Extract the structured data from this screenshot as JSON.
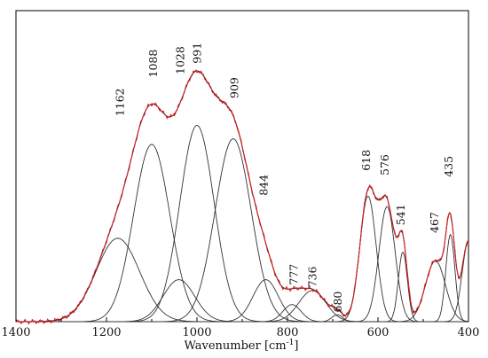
{
  "chart_data": {
    "type": "line",
    "title": "",
    "xlabel": "Wavenumber [cm",
    "xlabel_superscript": "-1",
    "xlabel_suffix": "]",
    "ylabel": "",
    "xlim": [
      1400,
      400
    ],
    "x_reversed": true,
    "x_ticks": [
      1400,
      1200,
      1000,
      800,
      600,
      400
    ],
    "y_ticks": [],
    "grid": false,
    "legend": "none",
    "colors": {
      "measured": "#d42020",
      "fit": "#222222",
      "component": "#333333"
    },
    "components": [
      {
        "center": 1175,
        "height": 0.268,
        "width": 48
      },
      {
        "center": 1100,
        "height": 0.57,
        "width": 40
      },
      {
        "center": 1040,
        "height": 0.135,
        "width": 35
      },
      {
        "center": 1000,
        "height": 0.631,
        "width": 38
      },
      {
        "center": 920,
        "height": 0.588,
        "width": 40
      },
      {
        "center": 848,
        "height": 0.135,
        "width": 28
      },
      {
        "center": 790,
        "height": 0.055,
        "width": 20
      },
      {
        "center": 745,
        "height": 0.1,
        "width": 30
      },
      {
        "center": 690,
        "height": 0.022,
        "width": 12
      },
      {
        "center": 622,
        "height": 0.404,
        "width": 18
      },
      {
        "center": 580,
        "height": 0.37,
        "width": 18
      },
      {
        "center": 545,
        "height": 0.224,
        "width": 10
      },
      {
        "center": 473,
        "height": 0.196,
        "width": 22
      },
      {
        "center": 440,
        "height": 0.28,
        "width": 10
      },
      {
        "center": 400,
        "height": 0.26,
        "width": 14
      }
    ],
    "peak_labels": [
      {
        "text": "1162",
        "x": 1162,
        "y": 0.66
      },
      {
        "text": "1088",
        "x": 1088,
        "y": 0.785
      },
      {
        "text": "1028",
        "x": 1028,
        "y": 0.795
      },
      {
        "text": "991",
        "x": 991,
        "y": 0.83
      },
      {
        "text": "909",
        "x": 909,
        "y": 0.718
      },
      {
        "text": "844",
        "x": 844,
        "y": 0.405
      },
      {
        "text": "777",
        "x": 777,
        "y": 0.118
      },
      {
        "text": "736",
        "x": 736,
        "y": 0.11
      },
      {
        "text": "680",
        "x": 680,
        "y": 0.03
      },
      {
        "text": "618",
        "x": 618,
        "y": 0.485
      },
      {
        "text": "576",
        "x": 576,
        "y": 0.47
      },
      {
        "text": "541",
        "x": 541,
        "y": 0.31
      },
      {
        "text": "467",
        "x": 467,
        "y": 0.285
      },
      {
        "text": "435",
        "x": 435,
        "y": 0.465
      }
    ]
  }
}
